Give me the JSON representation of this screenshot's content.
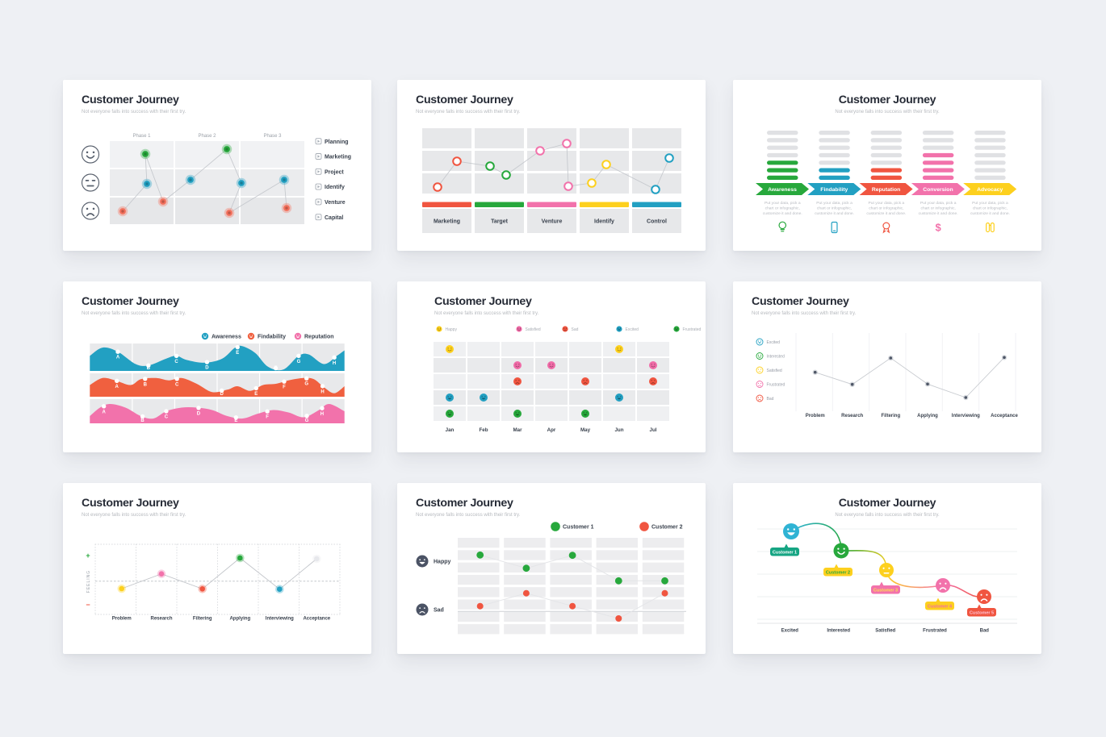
{
  "common": {
    "title": "Customer Journey",
    "subtitle": "Not everyone falls into success with their first try."
  },
  "palette": {
    "page_bg": "#eef0f4",
    "card_bg": "#ffffff",
    "dark": "#262b36",
    "gray_text": "#a8acb3",
    "label_dark": "#39414d",
    "green": "#27a83c",
    "teal": "#22a0c2",
    "teal2": "#2fb3d4",
    "red": "#f05540",
    "salmon": "#f4705c",
    "orange": "#f0603f",
    "pink": "#f272ab",
    "pink2": "#f06ba7",
    "yellow": "#fdd01e",
    "navy": "#4b5365",
    "lightdot": "#e7e8ec",
    "line_gray": "#c6c9ce"
  },
  "chart_data": [
    {
      "id": "s1",
      "type": "scatter",
      "phases": [
        "Phase 1",
        "Phase 2",
        "Phase 3"
      ],
      "mood_rows": [
        "happy",
        "neutral",
        "sad"
      ],
      "legend": [
        "Planning",
        "Marketing",
        "Project",
        "Identify",
        "Venture",
        "Capital"
      ],
      "points": [
        {
          "x": 74,
          "y": 163,
          "color": "salmon"
        },
        {
          "x": 104,
          "y": 129,
          "color": "teal"
        },
        {
          "x": 102,
          "y": 92,
          "color": "green"
        },
        {
          "x": 124,
          "y": 151,
          "color": "salmon"
        },
        {
          "x": 158,
          "y": 124,
          "color": "teal"
        },
        {
          "x": 203,
          "y": 86,
          "color": "green"
        },
        {
          "x": 221,
          "y": 128,
          "color": "teal"
        },
        {
          "x": 206,
          "y": 165,
          "color": "salmon"
        },
        {
          "x": 274,
          "y": 124,
          "color": "teal"
        },
        {
          "x": 277,
          "y": 159,
          "color": "salmon"
        }
      ]
    },
    {
      "id": "s2",
      "type": "scatter",
      "stages": [
        {
          "label": "Marketing",
          "color": "red"
        },
        {
          "label": "Target",
          "color": "green"
        },
        {
          "label": "Venture",
          "color": "pink"
        },
        {
          "label": "Identify",
          "color": "yellow"
        },
        {
          "label": "Control",
          "color": "teal"
        }
      ],
      "points": [
        {
          "x": 50,
          "y": 133,
          "color": "red"
        },
        {
          "x": 74,
          "y": 101,
          "color": "red"
        },
        {
          "x": 115,
          "y": 107,
          "color": "green"
        },
        {
          "x": 135,
          "y": 118,
          "color": "green"
        },
        {
          "x": 177,
          "y": 88,
          "color": "pink"
        },
        {
          "x": 210,
          "y": 79,
          "color": "pink"
        },
        {
          "x": 212,
          "y": 132,
          "color": "pink"
        },
        {
          "x": 241,
          "y": 128,
          "color": "yellow"
        },
        {
          "x": 259,
          "y": 105,
          "color": "yellow"
        },
        {
          "x": 320,
          "y": 136,
          "color": "teal"
        },
        {
          "x": 337,
          "y": 97,
          "color": "teal"
        }
      ]
    },
    {
      "id": "s3",
      "type": "bar",
      "total_bars": 8,
      "description_lines": [
        "Put your data, pick a",
        "chart or infographic,",
        "customize it and done."
      ],
      "columns": [
        {
          "label": "Awareness",
          "color": "green",
          "filled": 4,
          "icon": "lightbulb-icon"
        },
        {
          "label": "Findability",
          "color": "teal",
          "filled": 3,
          "icon": "smartphone-icon"
        },
        {
          "label": "Reputation",
          "color": "red",
          "filled": 3,
          "icon": "medal-icon"
        },
        {
          "label": "Conversion",
          "color": "pink",
          "filled": 5,
          "icon": "dollar-icon"
        },
        {
          "label": "Advocacy",
          "color": "yellow",
          "filled": 1,
          "icon": "binoculars-icon"
        }
      ]
    },
    {
      "id": "s4",
      "type": "area",
      "legend": [
        {
          "label": "Awareness",
          "color": "teal"
        },
        {
          "label": "Findability",
          "color": "orange"
        },
        {
          "label": "Reputation",
          "color": "pink"
        }
      ],
      "bands": [
        {
          "color": "teal",
          "letters": [
            "A",
            "B",
            "C",
            "D",
            "E",
            "F",
            "G",
            "H"
          ],
          "letter_x": [
            0.11,
            0.23,
            0.34,
            0.46,
            0.58,
            0.73,
            0.82,
            0.96
          ],
          "wave": [
            [
              0,
              0.45
            ],
            [
              0.05,
              0.15
            ],
            [
              0.11,
              0.3
            ],
            [
              0.18,
              0.75
            ],
            [
              0.23,
              0.8
            ],
            [
              0.3,
              0.55
            ],
            [
              0.34,
              0.45
            ],
            [
              0.38,
              0.6
            ],
            [
              0.45,
              0.7
            ],
            [
              0.52,
              0.55
            ],
            [
              0.57,
              0.15
            ],
            [
              0.6,
              0.1
            ],
            [
              0.65,
              0.35
            ],
            [
              0.7,
              0.85
            ],
            [
              0.76,
              0.95
            ],
            [
              0.82,
              0.45
            ],
            [
              0.86,
              0.4
            ],
            [
              0.92,
              0.75
            ],
            [
              0.97,
              0.45
            ],
            [
              1,
              0.25
            ]
          ]
        },
        {
          "color": "orange",
          "letters": [
            "A",
            "B",
            "C",
            "D",
            "E",
            "F",
            "G",
            "H"
          ],
          "letter_x": [
            0.106,
            0.217,
            0.342,
            0.518,
            0.653,
            0.763,
            0.851,
            0.914
          ],
          "wave": [
            [
              0,
              0.5
            ],
            [
              0.05,
              0.2
            ],
            [
              0.1,
              0.3
            ],
            [
              0.16,
              0.5
            ],
            [
              0.2,
              0.25
            ],
            [
              0.26,
              0.2
            ],
            [
              0.31,
              0.3
            ],
            [
              0.36,
              0.2
            ],
            [
              0.42,
              0.45
            ],
            [
              0.48,
              0.8
            ],
            [
              0.54,
              0.7
            ],
            [
              0.58,
              0.55
            ],
            [
              0.63,
              0.75
            ],
            [
              0.68,
              0.5
            ],
            [
              0.73,
              0.45
            ],
            [
              0.78,
              0.3
            ],
            [
              0.84,
              0.2
            ],
            [
              0.88,
              0.25
            ],
            [
              0.92,
              0.6
            ],
            [
              0.96,
              0.85
            ],
            [
              1,
              0.55
            ]
          ]
        },
        {
          "color": "pink",
          "letters": [
            "A",
            "B",
            "C",
            "D",
            "E",
            "F",
            "G",
            "H"
          ],
          "letter_x": [
            0.055,
            0.207,
            0.3,
            0.427,
            0.574,
            0.697,
            0.852,
            0.912
          ],
          "wave": [
            [
              0,
              0.7
            ],
            [
              0.04,
              0.35
            ],
            [
              0.08,
              0.2
            ],
            [
              0.14,
              0.35
            ],
            [
              0.2,
              0.7
            ],
            [
              0.25,
              0.8
            ],
            [
              0.3,
              0.5
            ],
            [
              0.36,
              0.35
            ],
            [
              0.42,
              0.35
            ],
            [
              0.48,
              0.45
            ],
            [
              0.54,
              0.7
            ],
            [
              0.6,
              0.8
            ],
            [
              0.66,
              0.6
            ],
            [
              0.72,
              0.45
            ],
            [
              0.78,
              0.55
            ],
            [
              0.84,
              0.75
            ],
            [
              0.9,
              0.45
            ],
            [
              0.94,
              0.2
            ],
            [
              1,
              0.5
            ]
          ]
        }
      ]
    },
    {
      "id": "s5",
      "type": "scatter",
      "months": [
        "Jan",
        "Feb",
        "Mar",
        "Apr",
        "May",
        "Jun",
        "Jul"
      ],
      "rows": [
        {
          "mood": "Happy",
          "color": "yellow",
          "variant": "happy",
          "cols": [
            0,
            5
          ]
        },
        {
          "mood": "Satisfied",
          "color": "pink2",
          "variant": "happy",
          "cols": [
            2,
            3,
            6
          ]
        },
        {
          "mood": "Sad",
          "color": "red",
          "variant": "sad",
          "cols": [
            2,
            4,
            6
          ]
        },
        {
          "mood": "Excited",
          "color": "teal",
          "variant": "grin",
          "cols": [
            0,
            1,
            5
          ]
        },
        {
          "mood": "Frustrated",
          "color": "green",
          "variant": "grin",
          "cols": [
            0,
            2,
            4
          ]
        }
      ]
    },
    {
      "id": "s6",
      "type": "line",
      "legend": [
        {
          "label": "Excited",
          "color": "teal",
          "variant": "grin"
        },
        {
          "label": "Interested",
          "color": "green",
          "variant": "happy"
        },
        {
          "label": "Satisfied",
          "color": "yellow",
          "variant": "meh"
        },
        {
          "label": "Frustrated",
          "color": "pink",
          "variant": "sad"
        },
        {
          "label": "Bad",
          "color": "red",
          "variant": "sad"
        }
      ],
      "stages": [
        "Problem",
        "Research",
        "Filtering",
        "Applying",
        "Interviewing",
        "Acceptance"
      ],
      "y": [
        112.7,
        127.7,
        95,
        127.3,
        144,
        94.3
      ]
    },
    {
      "id": "s7",
      "type": "line",
      "ylabel": "FEELING",
      "plus": "+",
      "minus": "−",
      "stages": [
        "Problem",
        "Research",
        "Filtering",
        "Applying",
        "Interviewing",
        "Acceptance"
      ],
      "points": [
        {
          "color": "yellow",
          "y": 131
        },
        {
          "color": "pink",
          "y": 112.7
        },
        {
          "color": "red",
          "y": 131.3
        },
        {
          "color": "green",
          "y": 93
        },
        {
          "color": "teal",
          "y": 131.7
        },
        {
          "color": "lightdot",
          "y": 94
        }
      ]
    },
    {
      "id": "s8",
      "type": "scatter",
      "legend": [
        {
          "label": "Customer 1",
          "color": "green"
        },
        {
          "label": "Customer 2",
          "color": "red"
        }
      ],
      "moods": [
        {
          "label": "Happy",
          "variant": "grin"
        },
        {
          "label": "Sad",
          "variant": "sad"
        }
      ],
      "series": [
        {
          "name": "Customer 1",
          "color": "green",
          "y": [
            89.3,
            105.7,
            89.7,
            121.3,
            121.3
          ]
        },
        {
          "name": "Customer 2",
          "color": "red",
          "y": [
            152.7,
            136.7,
            152.7,
            168,
            136.7
          ]
        }
      ]
    },
    {
      "id": "s9",
      "type": "curve",
      "stages": [
        "Excited",
        "Interested",
        "Satisfied",
        "Frustrated",
        "Bad"
      ],
      "faces": [
        {
          "color": "#2fb3d4",
          "variant": "grin"
        },
        {
          "color": "#27a83c",
          "variant": "happy"
        },
        {
          "color": "#fdd01e",
          "variant": "meh"
        },
        {
          "color": "#f272ab",
          "variant": "sad"
        },
        {
          "color": "#f05540",
          "variant": "sad"
        }
      ],
      "customers": [
        {
          "label": "Customer 1",
          "bg": "#16a583",
          "text_color": "#ffffff"
        },
        {
          "label": "Customer 2",
          "bg": "#fdd01e",
          "text_color": "#27a83c"
        },
        {
          "label": "Customer 3",
          "bg": "#f272ab",
          "text_color": "#ffe14d"
        },
        {
          "label": "Customer 4",
          "bg": "#fdd01e",
          "text_color": "#f06ba7"
        },
        {
          "label": "Customer 5",
          "bg": "#f05540",
          "text_color": "#ffc3d3"
        }
      ]
    }
  ]
}
